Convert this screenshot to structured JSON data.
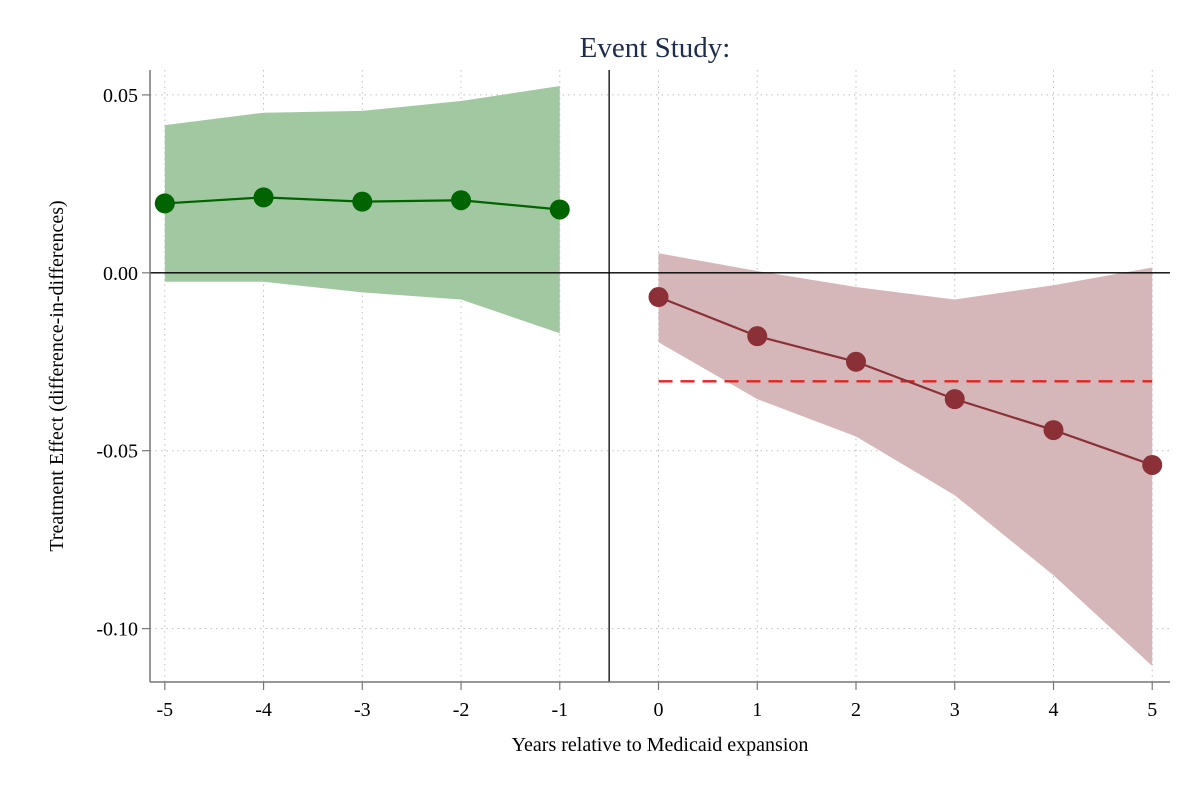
{
  "chart_data": {
    "type": "line",
    "title": "Event Study:",
    "xlabel": "Years relative to Medicaid expansion",
    "ylabel": "Treatment Effect (difference-in-differences)",
    "xlim": [
      -5.15,
      5.18
    ],
    "ylim": [
      -0.115,
      0.057
    ],
    "x_ticks": [
      -5,
      -4,
      -3,
      -2,
      -1,
      0,
      1,
      2,
      3,
      4,
      5
    ],
    "y_ticks": [
      0.05,
      0.0,
      -0.05,
      -0.1
    ],
    "y_tick_labels": [
      "0.05",
      "0.00",
      "-0.05",
      "-0.10"
    ],
    "grid": true,
    "reference_lines": {
      "y_zero": 0,
      "x_vertical": -0.5
    },
    "series": [
      {
        "period": "pre",
        "color": "#006400",
        "ci_color": "#a2c8a2",
        "x": [
          -5,
          -4,
          -3,
          -2,
          -1
        ],
        "y": [
          0.0195,
          0.0212,
          0.02,
          0.0204,
          0.0178
        ],
        "ci_low": [
          -0.0025,
          -0.0025,
          -0.0055,
          -0.0075,
          -0.017
        ],
        "ci_high": [
          0.0415,
          0.045,
          0.0455,
          0.0483,
          0.0525
        ]
      },
      {
        "period": "post",
        "color": "#8b3036",
        "ci_color": "#d6b7b9",
        "x": [
          0,
          1,
          2,
          3,
          4,
          5
        ],
        "y": [
          -0.0068,
          -0.0178,
          -0.025,
          -0.0355,
          -0.0442,
          -0.054
        ],
        "ci_low": [
          -0.0195,
          -0.0355,
          -0.046,
          -0.0625,
          -0.085,
          -0.1105
        ],
        "ci_high": [
          0.0055,
          0.0005,
          -0.004,
          -0.0075,
          -0.0035,
          0.0015
        ]
      }
    ],
    "average_line": {
      "y": -0.0305,
      "x_start": 0,
      "x_end": 5,
      "color": "#e8221e",
      "style": "dashed"
    }
  }
}
